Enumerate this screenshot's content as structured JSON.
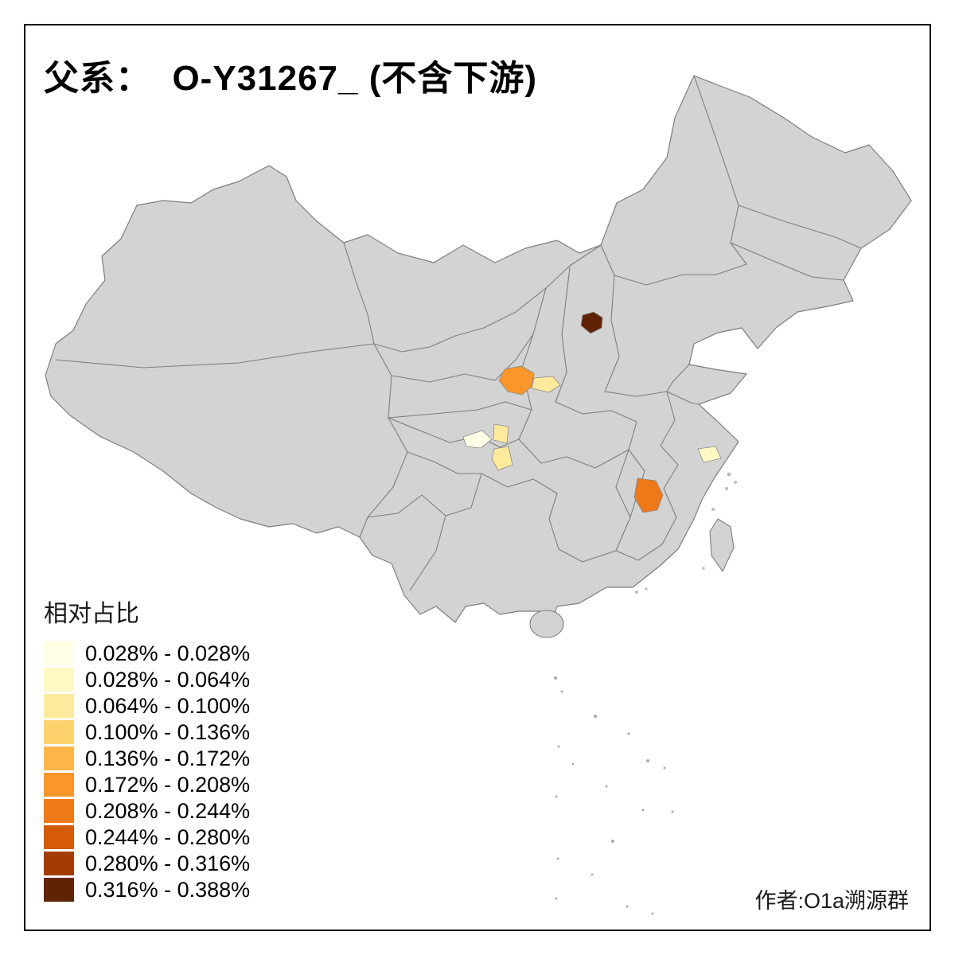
{
  "page": {
    "title": "父系：  O-Y31267_ (不含下游)",
    "author_credit": "作者:O1a溯源群",
    "background_color": "#FFFFFF",
    "frame_color": "#000000"
  },
  "map": {
    "base_fill": "#D3D3D3",
    "border_stroke": "#7E7E7E",
    "sea_fill": "#FFFFFF"
  },
  "legend": {
    "title": "相对占比",
    "items": [
      {
        "label": "0.028% - 0.028%",
        "color": "#FFFFE5"
      },
      {
        "label": "0.028% - 0.064%",
        "color": "#FFF8C2"
      },
      {
        "label": "0.064% - 0.100%",
        "color": "#FEE99C"
      },
      {
        "label": "0.100% - 0.136%",
        "color": "#FED36E"
      },
      {
        "label": "0.136% - 0.172%",
        "color": "#FEB648"
      },
      {
        "label": "0.172% - 0.208%",
        "color": "#FB962A"
      },
      {
        "label": "0.208% - 0.244%",
        "color": "#EE7918"
      },
      {
        "label": "0.244% - 0.280%",
        "color": "#D55A0A"
      },
      {
        "label": "0.280% - 0.316%",
        "color": "#A33C04"
      },
      {
        "label": "0.316% - 0.388%",
        "color": "#5F2305"
      }
    ]
  },
  "chart_data": {
    "type": "choropleth-map",
    "title": "父系：  O-Y31267_ (不含下游)",
    "legend_title": "相对占比",
    "bins": [
      "0.028% - 0.028%",
      "0.028% - 0.064%",
      "0.064% - 0.100%",
      "0.100% - 0.136%",
      "0.136% - 0.172%",
      "0.172% - 0.208%",
      "0.208% - 0.244%",
      "0.244% - 0.280%",
      "0.280% - 0.316%",
      "0.316% - 0.388%"
    ],
    "regions": [
      {
        "id": "region-north-china-dark",
        "location_hint": "north China (Shanxi area)",
        "value_range": "0.316% - 0.388%",
        "color": "#5F2305"
      },
      {
        "id": "region-gansu-orange",
        "location_hint": "central west (Lanzhou area)",
        "value_range": "0.172% - 0.208%",
        "color": "#FB962A"
      },
      {
        "id": "region-gansu-east-pale",
        "location_hint": "east of Lanzhou area",
        "value_range": "0.064% - 0.100%",
        "color": "#FEE99C"
      },
      {
        "id": "region-west-sichuan-cream",
        "location_hint": "west Sichuan area",
        "value_range": "0.028% - 0.028%",
        "color": "#FFFFE5"
      },
      {
        "id": "region-central-sichuan-pale",
        "location_hint": "central Sichuan area",
        "value_range": "0.064% - 0.100%",
        "color": "#FEE99C"
      },
      {
        "id": "region-south-sichuan-pale",
        "location_hint": "south Sichuan area",
        "value_range": "0.064% - 0.100%",
        "color": "#FEE99C"
      },
      {
        "id": "region-east-coast-pale",
        "location_hint": "east coast (Shanghai area)",
        "value_range": "0.028% - 0.064%",
        "color": "#FFF8C2"
      },
      {
        "id": "region-jiangxi-orange",
        "location_hint": "southeast (Jiangxi area)",
        "value_range": "0.208% - 0.244%",
        "color": "#EE7918"
      }
    ]
  }
}
